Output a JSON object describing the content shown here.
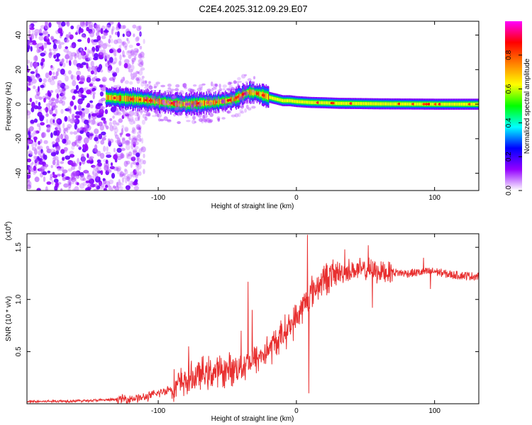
{
  "title": "C2E4.2025.312.09.29.E07",
  "chart_data": [
    {
      "type": "heatmap",
      "title": "C2E4.2025.312.09.29.E07",
      "xlabel": "Height of straight line (km)",
      "ylabel": "Frequency (Hz)",
      "xlim": [
        -195,
        132
      ],
      "ylim": [
        -50,
        48
      ],
      "xticks": [
        -100,
        0,
        100
      ],
      "yticks": [
        -40,
        -20,
        0,
        20,
        40
      ],
      "colorbar": {
        "label": "Normalized spectral amplitude",
        "range": [
          0,
          1
        ],
        "ticks": [
          "0.0",
          "0.2",
          "0.4",
          "0.6",
          "0.8"
        ],
        "tick_values": [
          0,
          0.2,
          0.4,
          0.6,
          0.8
        ],
        "colormap": [
          "#ffffff",
          "#9400ff",
          "#0000ff",
          "#00ffff",
          "#00ff00",
          "#ffff00",
          "#ff8000",
          "#ff0000",
          "#ff00ff"
        ]
      },
      "ridge": {
        "x": [
          -138,
          -130,
          -120,
          -110,
          -100,
          -90,
          -80,
          -70,
          -60,
          -50,
          -45,
          -40,
          -35,
          -30,
          -25,
          -20,
          -15,
          -10,
          -5,
          0,
          10,
          20,
          30,
          40,
          50,
          60,
          80,
          100,
          132
        ],
        "freq": [
          4,
          3.5,
          3,
          2.5,
          1.5,
          0.5,
          0,
          0.5,
          1,
          2,
          3,
          5,
          7,
          6.5,
          5.5,
          4,
          3,
          2,
          2,
          1.5,
          1,
          0.8,
          0.5,
          0.4,
          0.3,
          0.2,
          0.1,
          0,
          0
        ]
      },
      "noise_region_x": [
        -195,
        -110
      ]
    },
    {
      "type": "line",
      "title": "",
      "xlabel": "Height of straight line (km)",
      "ylabel": "SNR (10 * v/v)",
      "scale_label": "(x10",
      "scale_exp": "4",
      "xlim": [
        -195,
        132
      ],
      "ylim": [
        0,
        1.63
      ],
      "xticks": [
        -100,
        0,
        100
      ],
      "yticks": [
        0.5,
        1.0,
        1.5
      ],
      "ytick_labels": [
        "0.5",
        "1.0",
        "1.5"
      ],
      "color": "#e83030",
      "envelope": {
        "x": [
          -195,
          -150,
          -130,
          -110,
          -100,
          -90,
          -80,
          -70,
          -60,
          -50,
          -40,
          -30,
          -20,
          -10,
          0,
          10,
          20,
          30,
          40,
          50,
          60,
          70,
          80,
          90,
          100,
          110,
          120,
          132
        ],
        "y": [
          0.02,
          0.03,
          0.04,
          0.06,
          0.1,
          0.15,
          0.22,
          0.28,
          0.3,
          0.32,
          0.36,
          0.42,
          0.52,
          0.66,
          0.82,
          1.05,
          1.2,
          1.25,
          1.28,
          1.28,
          1.27,
          1.26,
          1.25,
          1.26,
          1.27,
          1.24,
          1.23,
          1.22
        ]
      },
      "spikes": [
        {
          "x": -78,
          "y": 0.55
        },
        {
          "x": -40,
          "y": 0.7
        },
        {
          "x": -35,
          "y": 1.17
        },
        {
          "x": -32,
          "y": 0.9
        },
        {
          "x": 8,
          "y": 1.62
        },
        {
          "x": 9,
          "y": 0.1
        },
        {
          "x": 35,
          "y": 1.48
        },
        {
          "x": 52,
          "y": 1.52
        },
        {
          "x": 55,
          "y": 0.92
        },
        {
          "x": 92,
          "y": 1.4
        },
        {
          "x": 97,
          "y": 1.1
        }
      ]
    }
  ]
}
